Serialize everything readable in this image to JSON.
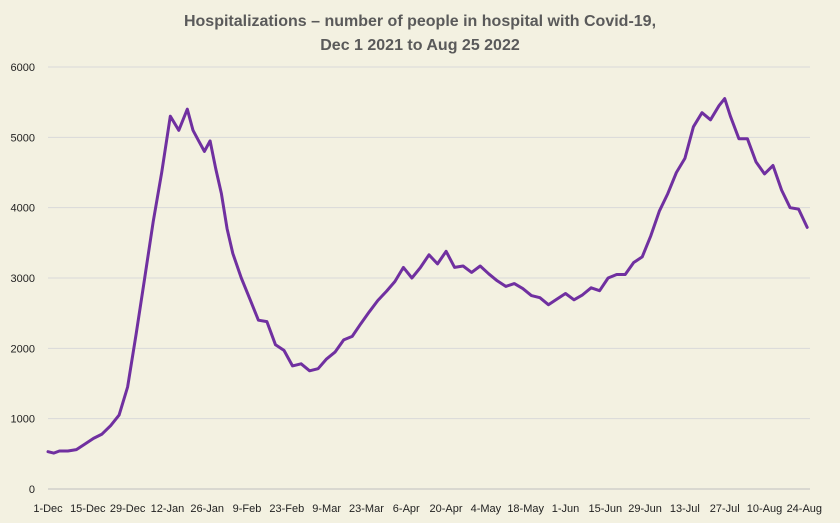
{
  "chart_data": {
    "type": "line",
    "title_lines": [
      "Hospitalizations – number of people in hospital with Covid-19,",
      "Dec 1 2021 to Aug 25  2022"
    ],
    "xlabel": "",
    "ylabel": "",
    "ylim": [
      0,
      6000
    ],
    "yticks": [
      0,
      1000,
      2000,
      3000,
      4000,
      5000,
      6000
    ],
    "xticks": [
      "1-Dec",
      "15-Dec",
      "29-Dec",
      "12-Jan",
      "26-Jan",
      "9-Feb",
      "23-Feb",
      "9-Mar",
      "23-Mar",
      "6-Apr",
      "20-Apr",
      "4-May",
      "18-May",
      "1-Jun",
      "15-Jun",
      "29-Jun",
      "13-Jul",
      "27-Jul",
      "10-Aug",
      "24-Aug"
    ],
    "grid": true,
    "legend": "none",
    "line_color": "#7030a0",
    "series": [
      {
        "x": [
          "2021-12-01",
          "2021-12-03",
          "2021-12-05",
          "2021-12-08",
          "2021-12-11",
          "2021-12-14",
          "2021-12-17",
          "2021-12-20",
          "2021-12-23",
          "2021-12-26",
          "2021-12-29",
          "2022-01-01",
          "2022-01-04",
          "2022-01-07",
          "2022-01-10",
          "2022-01-13",
          "2022-01-16",
          "2022-01-19",
          "2022-01-21",
          "2022-01-23",
          "2022-01-25",
          "2022-01-27",
          "2022-01-29",
          "2022-01-31",
          "2022-02-02",
          "2022-02-04",
          "2022-02-07",
          "2022-02-10",
          "2022-02-13",
          "2022-02-16",
          "2022-02-19",
          "2022-02-22",
          "2022-02-25",
          "2022-02-28",
          "2022-03-03",
          "2022-03-06",
          "2022-03-09",
          "2022-03-12",
          "2022-03-15",
          "2022-03-18",
          "2022-03-21",
          "2022-03-24",
          "2022-03-27",
          "2022-03-30",
          "2022-04-02",
          "2022-04-05",
          "2022-04-08",
          "2022-04-11",
          "2022-04-14",
          "2022-04-17",
          "2022-04-20",
          "2022-04-23",
          "2022-04-26",
          "2022-04-29",
          "2022-05-02",
          "2022-05-05",
          "2022-05-08",
          "2022-05-11",
          "2022-05-14",
          "2022-05-17",
          "2022-05-20",
          "2022-05-23",
          "2022-05-26",
          "2022-05-29",
          "2022-06-01",
          "2022-06-04",
          "2022-06-07",
          "2022-06-10",
          "2022-06-13",
          "2022-06-16",
          "2022-06-19",
          "2022-06-22",
          "2022-06-25",
          "2022-06-28",
          "2022-07-01",
          "2022-07-04",
          "2022-07-07",
          "2022-07-10",
          "2022-07-13",
          "2022-07-16",
          "2022-07-19",
          "2022-07-22",
          "2022-07-25",
          "2022-07-27",
          "2022-07-29",
          "2022-08-01",
          "2022-08-04",
          "2022-08-07",
          "2022-08-10",
          "2022-08-13",
          "2022-08-16",
          "2022-08-19",
          "2022-08-22",
          "2022-08-25"
        ],
        "values": [
          530,
          510,
          540,
          540,
          560,
          640,
          720,
          780,
          900,
          1050,
          1450,
          2200,
          3000,
          3800,
          4500,
          5300,
          5100,
          5400,
          5100,
          4950,
          4800,
          4950,
          4550,
          4200,
          3700,
          3350,
          3000,
          2700,
          2400,
          2380,
          2050,
          1970,
          1750,
          1780,
          1680,
          1710,
          1850,
          1950,
          2120,
          2170,
          2350,
          2520,
          2680,
          2810,
          2950,
          3150,
          3000,
          3150,
          3330,
          3200,
          3380,
          3150,
          3170,
          3080,
          3170,
          3060,
          2960,
          2880,
          2920,
          2850,
          2750,
          2720,
          2620,
          2700,
          2780,
          2690,
          2760,
          2860,
          2820,
          3000,
          3050,
          3050,
          3220,
          3300,
          3600,
          3950,
          4200,
          4500,
          4700,
          5150,
          5350,
          5250,
          5450,
          5550,
          5300,
          4980,
          4980,
          4650,
          4480,
          4600,
          4250,
          4000,
          3980,
          3720
        ]
      }
    ]
  }
}
